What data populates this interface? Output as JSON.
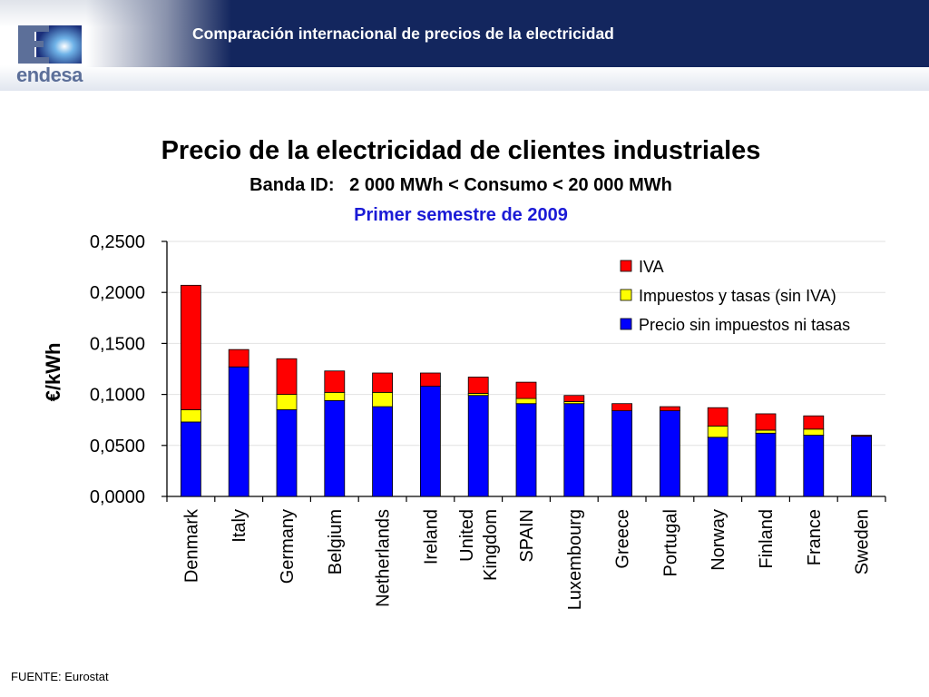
{
  "header": {
    "title": "Comparación internacional de precios de la electricidad",
    "logo_text": "endesa",
    "logo_letter": "E"
  },
  "colors": {
    "header_bg": "#13265e",
    "iva": "#ff0000",
    "impuestos": "#ffff00",
    "precio": "#0000ff",
    "period_text": "#1b1bd6"
  },
  "chart_data": {
    "type": "bar",
    "stacked": true,
    "title": "Precio de la electricidad de clientes industriales",
    "subtitle": "Banda ID:   2 000 MWh < Consumo < 20 000 MWh",
    "period": "Primer semestre de 2009",
    "xlabel": "",
    "ylabel": "€/kWh",
    "ylim": [
      0,
      0.25
    ],
    "yticks": [
      "0,0000",
      "0,0500",
      "0,1000",
      "0,1500",
      "0,2000",
      "0,2500"
    ],
    "ytick_values": [
      0,
      0.05,
      0.1,
      0.15,
      0.2,
      0.25
    ],
    "grid": true,
    "legend_position": "top-right",
    "categories": [
      [
        "Denmark"
      ],
      [
        "Italy"
      ],
      [
        "Germany"
      ],
      [
        "Belgium"
      ],
      [
        "Netherlands"
      ],
      [
        "Ireland"
      ],
      [
        "United",
        "Kingdom"
      ],
      [
        "SPAIN"
      ],
      [
        "Luxembourg"
      ],
      [
        "Greece"
      ],
      [
        "Portugal"
      ],
      [
        "Norway"
      ],
      [
        "Finland"
      ],
      [
        "France"
      ],
      [
        "Sweden"
      ]
    ],
    "series": [
      {
        "name": "Precio sin impuestos ni tasas",
        "color": "#0000ff",
        "values": [
          0.073,
          0.127,
          0.085,
          0.094,
          0.088,
          0.108,
          0.099,
          0.091,
          0.091,
          0.084,
          0.084,
          0.058,
          0.062,
          0.06,
          0.059
        ]
      },
      {
        "name": "Impuestos y tasas (sin IVA)",
        "color": "#ffff00",
        "values": [
          0.012,
          0.0,
          0.015,
          0.008,
          0.014,
          0.0,
          0.002,
          0.005,
          0.002,
          0.0,
          0.0,
          0.011,
          0.003,
          0.006,
          0.0
        ]
      },
      {
        "name": "IVA",
        "color": "#ff0000",
        "values": [
          0.122,
          0.017,
          0.035,
          0.021,
          0.019,
          0.013,
          0.016,
          0.016,
          0.006,
          0.007,
          0.004,
          0.018,
          0.016,
          0.013,
          0.001
        ]
      }
    ],
    "legend_order": [
      "IVA",
      "Impuestos y tasas (sin IVA)",
      "Precio sin impuestos ni tasas"
    ]
  },
  "footer": {
    "source": "FUENTE: Eurostat"
  }
}
